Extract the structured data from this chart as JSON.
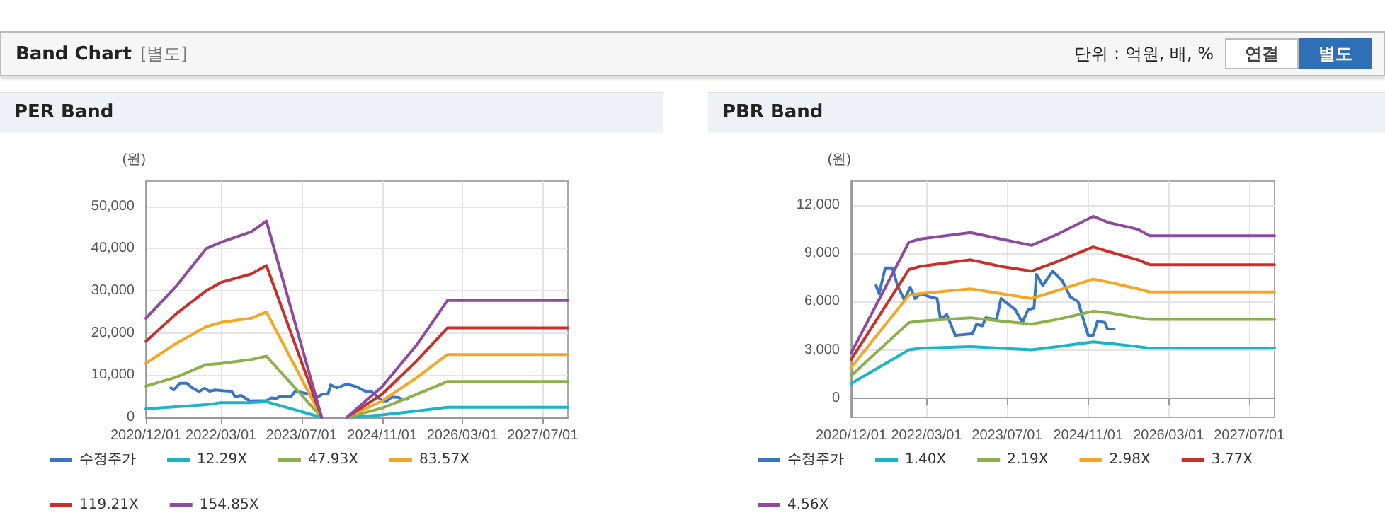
{
  "chart_data": [
    {
      "type": "line",
      "title": "PER Band",
      "ylabel": "(원)",
      "annotations": [
        "Band Chart",
        "[별도]",
        "단위 : 억원, 배, %",
        "연결",
        "별도"
      ],
      "x": [
        "2020-12-01",
        "2021-06-01",
        "2021-12-01",
        "2022-03-01",
        "2022-09-01",
        "2022-12-01",
        "2023-11-01",
        "2024-01-15",
        "2024-04-01",
        "2024-11-01",
        "2025-06-01",
        "2025-12-01",
        "2027-12-01"
      ],
      "series": [
        {
          "name": "수정주가",
          "color": "#3a75c4",
          "x": [
            "2021-05-01",
            "2021-05-19",
            "2021-06-25",
            "2021-08-07",
            "2021-09-07",
            "2021-10-19",
            "2021-11-22",
            "2021-12-22",
            "2022-01-25",
            "2022-03-22",
            "2022-05-04",
            "2022-05-25",
            "2022-07-01",
            "2022-08-22",
            "2022-12-04",
            "2022-12-28",
            "2023-02-01",
            "2023-02-22",
            "2023-04-28",
            "2023-05-25",
            "2023-08-19",
            "2023-10-01",
            "2023-11-04",
            "2023-12-10",
            "2023-12-25",
            "2024-02-01",
            "2024-04-01",
            "2024-05-28",
            "2024-07-16",
            "2024-09-01",
            "2024-11-01",
            "2024-12-01",
            "2024-12-28",
            "2025-02-10",
            "2025-02-25",
            "2025-04-07"
          ],
          "values": [
            7000,
            6500,
            8100,
            8100,
            7000,
            6100,
            6900,
            6200,
            6500,
            6300,
            6200,
            4900,
            5200,
            3900,
            4000,
            4600,
            4500,
            5000,
            4900,
            6200,
            5500,
            4700,
            5500,
            5600,
            7700,
            7000,
            7900,
            7300,
            6300,
            6000,
            3900,
            3900,
            4800,
            4700,
            4300,
            4300
          ]
        },
        {
          "name": "12.29X",
          "color": "#1ab5c6",
          "values": [
            2000,
            2500,
            3000,
            3500,
            3500,
            3700,
            0,
            null,
            0,
            600,
            1500,
            2400,
            2400
          ]
        },
        {
          "name": "47.93X",
          "color": "#8cb04a",
          "values": [
            7400,
            9500,
            12500,
            12800,
            13700,
            14500,
            0,
            null,
            0,
            2200,
            5500,
            8500,
            8500
          ]
        },
        {
          "name": "83.57X",
          "color": "#f5a623",
          "values": [
            12800,
            17500,
            21500,
            22500,
            23500,
            25000,
            0,
            null,
            0,
            3900,
            9500,
            14900,
            14900
          ]
        },
        {
          "name": "119.21X",
          "color": "#c8302a",
          "values": [
            18000,
            24500,
            30000,
            32000,
            34000,
            36000,
            0,
            null,
            0,
            5500,
            13500,
            21200,
            21200
          ]
        },
        {
          "name": "154.85X",
          "color": "#8e4b9e",
          "values": [
            23500,
            31000,
            40000,
            41500,
            44000,
            46500,
            0,
            null,
            0,
            7300,
            17300,
            27700,
            27700
          ]
        }
      ],
      "xlim": [
        "2020-12-01",
        "2027-12-01"
      ],
      "xticks": [
        {
          "value": "2020-12-01",
          "label": "2020/12/01"
        },
        {
          "value": "2022-03-01",
          "label": "2022/03/01"
        },
        {
          "value": "2023-07-01",
          "label": "2023/07/01"
        },
        {
          "value": "2024-11-01",
          "label": "2024/11/01"
        },
        {
          "value": "2026-03-01",
          "label": "2026/03/01"
        },
        {
          "value": "2027-07-01",
          "label": "2027/07/01"
        }
      ],
      "ylim": [
        0,
        56000
      ],
      "yticks": [
        0,
        {
          "value": 10000,
          "label": "10,000"
        },
        {
          "value": 20000,
          "label": "20,000"
        },
        {
          "value": 30000,
          "label": "30,000"
        },
        {
          "value": 40000,
          "label": "40,000"
        },
        {
          "value": 50000,
          "label": "50,000"
        }
      ],
      "grid": true,
      "legend": "bottom",
      "marker": "none",
      "line_style": "solid"
    },
    {
      "type": "line",
      "title": "PBR Band",
      "ylabel": "(원)",
      "x": [
        "2020-12-01",
        "2021-11-15",
        "2022-01-25",
        "2022-11-22",
        "2023-05-22",
        "2023-11-25",
        "2024-05-01",
        "2024-12-01",
        "2025-03-10",
        "2025-08-28",
        "2025-11-07",
        "2027-12-01"
      ],
      "series": [
        {
          "name": "수정주가",
          "color": "#3a75c4",
          "x": [
            "2021-05-01",
            "2021-05-19",
            "2021-06-25",
            "2021-08-07",
            "2021-09-07",
            "2021-10-19",
            "2021-11-22",
            "2021-12-22",
            "2022-01-25",
            "2022-03-22",
            "2022-05-04",
            "2022-05-25",
            "2022-07-01",
            "2022-08-22",
            "2022-12-04",
            "2022-12-28",
            "2023-02-01",
            "2023-02-22",
            "2023-04-28",
            "2023-05-25",
            "2023-08-19",
            "2023-10-01",
            "2023-11-04",
            "2023-12-10",
            "2023-12-25",
            "2024-02-01",
            "2024-04-01",
            "2024-05-28",
            "2024-07-16",
            "2024-09-01",
            "2024-11-01",
            "2024-12-01",
            "2024-12-28",
            "2025-02-10",
            "2025-02-25",
            "2025-04-07"
          ],
          "values": [
            7000,
            6500,
            8100,
            8100,
            7000,
            6100,
            6900,
            6200,
            6500,
            6300,
            6200,
            4900,
            5200,
            3900,
            4000,
            4600,
            4500,
            5000,
            4900,
            6200,
            5500,
            4700,
            5500,
            5600,
            7700,
            7000,
            7900,
            7300,
            6300,
            6000,
            3900,
            3900,
            4800,
            4700,
            4300,
            4300
          ]
        },
        {
          "name": "1.40X",
          "color": "#1ab5c6",
          "values": [
            900,
            3000,
            3100,
            3200,
            3100,
            3000,
            3200,
            3500,
            3400,
            3200,
            3100,
            3100
          ]
        },
        {
          "name": "2.19X",
          "color": "#8cb04a",
          "values": [
            1400,
            4700,
            4800,
            5000,
            4800,
            4600,
            4900,
            5400,
            5300,
            5000,
            4900,
            4900
          ]
        },
        {
          "name": "2.98X",
          "color": "#f5a623",
          "values": [
            1900,
            6400,
            6500,
            6800,
            6500,
            6200,
            6700,
            7400,
            7200,
            6800,
            6600,
            6600
          ]
        },
        {
          "name": "3.77X",
          "color": "#c8302a",
          "values": [
            2400,
            8000,
            8200,
            8600,
            8200,
            7900,
            8500,
            9400,
            9100,
            8600,
            8300,
            8300
          ]
        },
        {
          "name": "4.56X",
          "color": "#8e4b9e",
          "values": [
            2800,
            9700,
            9900,
            10300,
            9900,
            9500,
            10200,
            11300,
            10900,
            10500,
            10100,
            10100
          ]
        }
      ],
      "xlim": [
        "2020-12-01",
        "2027-12-01"
      ],
      "xticks": [
        {
          "value": "2020-12-01",
          "label": "2020/12/01"
        },
        {
          "value": "2022-03-01",
          "label": "2022/03/01"
        },
        {
          "value": "2023-07-01",
          "label": "2023/07/01"
        },
        {
          "value": "2024-11-01",
          "label": "2024/11/01"
        },
        {
          "value": "2026-03-01",
          "label": "2026/03/01"
        },
        {
          "value": "2027-07-01",
          "label": "2027/07/01"
        }
      ],
      "ylim": [
        -1200,
        13500
      ],
      "yticks": [
        0,
        {
          "value": 3000,
          "label": "3,000"
        },
        {
          "value": 6000,
          "label": "6,000"
        },
        {
          "value": 9000,
          "label": "9,000"
        },
        {
          "value": 12000,
          "label": "12,000"
        }
      ],
      "grid": true,
      "legend": "bottom",
      "marker": "none",
      "line_style": "solid"
    }
  ]
}
